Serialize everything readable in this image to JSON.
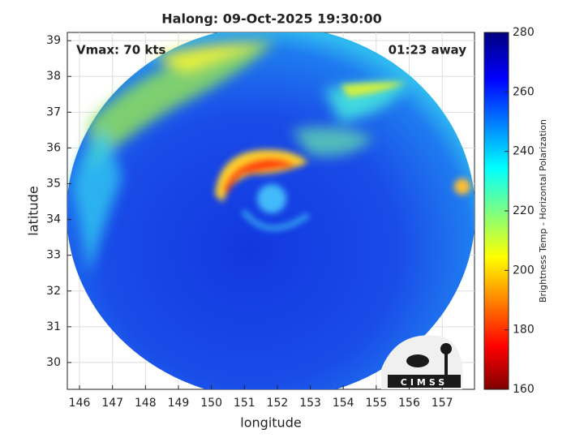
{
  "title": "Halong: 09-Oct-2025 19:30:00",
  "annotations": {
    "vmax": "Vmax: 70 kts",
    "time_away": "01:23 away"
  },
  "x_axis": {
    "label": "longitude",
    "lim": [
      145.63,
      157.98
    ],
    "ticks": [
      146,
      147,
      148,
      149,
      150,
      151,
      152,
      153,
      154,
      155,
      156,
      157
    ]
  },
  "y_axis": {
    "label": "latitude",
    "lim": [
      29.25,
      39.23
    ],
    "ticks": [
      30,
      31,
      32,
      33,
      34,
      35,
      36,
      37,
      38,
      39
    ]
  },
  "colorbar": {
    "label": "Brightness Temp - Horizontal Polarization",
    "lim": [
      160,
      280
    ],
    "ticks": [
      160,
      180,
      200,
      220,
      240,
      260,
      280
    ]
  },
  "logo": "CIMSS"
}
